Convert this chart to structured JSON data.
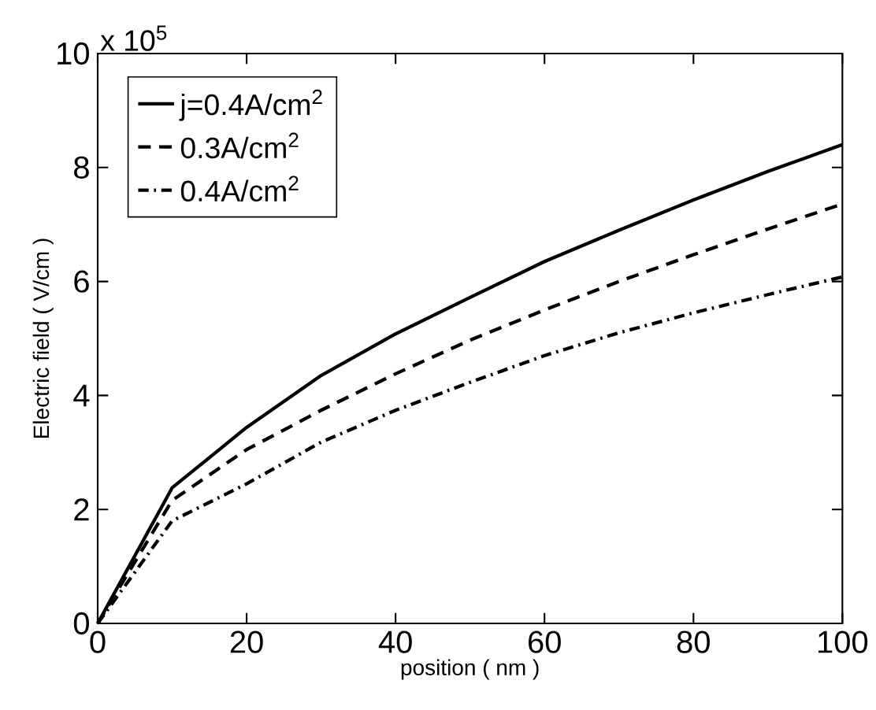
{
  "chart_data": {
    "type": "line",
    "xlabel": "position ( nm )",
    "ylabel": "Electric field ( V/cm )",
    "annotations": [
      "x 10$^{5}$"
    ],
    "x": [
      0,
      10,
      20,
      30,
      40,
      50,
      60,
      70,
      80,
      90,
      100
    ],
    "series": [
      {
        "name": "j=0.4A/cm$^{2}$",
        "color": "#000000",
        "line_style": "solid",
        "values": [
          0,
          2.38,
          3.44,
          4.35,
          5.08,
          5.72,
          6.35,
          6.9,
          7.43,
          7.93,
          8.4
        ]
      },
      {
        "name": "0.3A/cm$^{2}$",
        "color": "#000000",
        "line_style": "dashed",
        "values": [
          0,
          2.16,
          3.05,
          3.74,
          4.38,
          4.97,
          5.5,
          6.0,
          6.47,
          6.92,
          7.36
        ]
      },
      {
        "name": "0.4A/cm$^{2}$",
        "color": "#000000",
        "line_style": "dashdot",
        "values": [
          0,
          1.8,
          2.45,
          3.18,
          3.74,
          4.23,
          4.7,
          5.1,
          5.45,
          5.77,
          6.08
        ]
      }
    ],
    "xlim": [
      0,
      100
    ],
    "ylim": [
      0,
      10
    ],
    "xticks": [
      0,
      20,
      40,
      60,
      80,
      100
    ],
    "yticks": [
      0,
      2,
      4,
      6,
      8,
      10
    ],
    "grid": false,
    "legend": "top left",
    "marker": "none"
  }
}
